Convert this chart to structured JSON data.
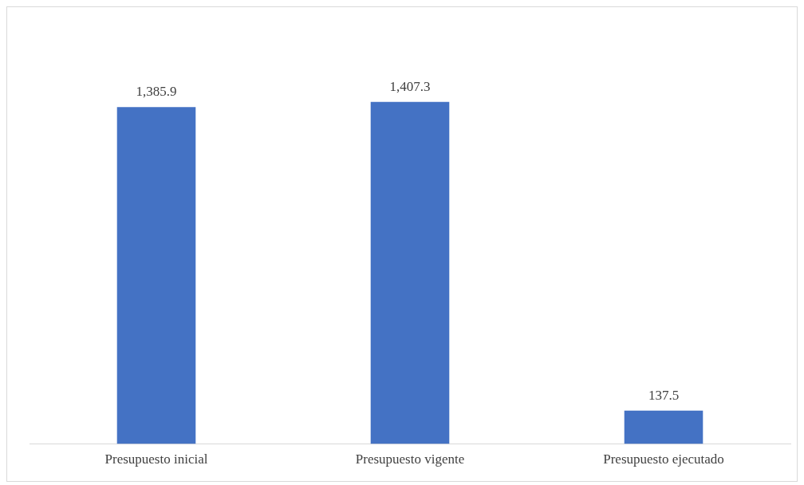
{
  "chart_data": {
    "type": "bar",
    "categories": [
      "Presupuesto inicial",
      "Presupuesto vigente",
      "Presupuesto ejecutado"
    ],
    "values": [
      1385.9,
      1407.3,
      137.5
    ],
    "color": "#4472c4",
    "value_labels": [
      "1,385.9",
      "1,407.3",
      "137.5"
    ],
    "grid": false,
    "legend": false
  }
}
